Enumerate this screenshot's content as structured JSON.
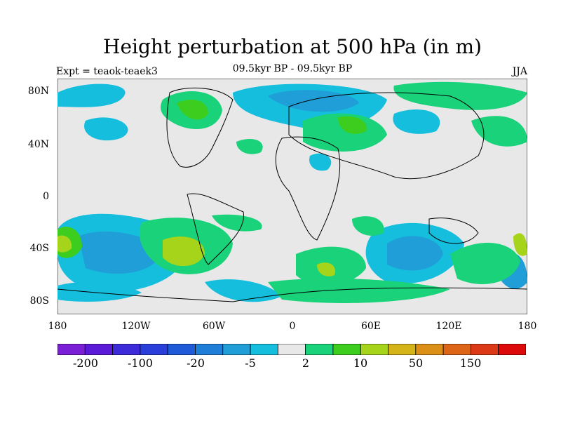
{
  "title": "Height perturbation at 500 hPa (in m)",
  "subtitle": "09.5kyr BP - 09.5kyr BP",
  "left_label": "Expt = teaok-teaek3",
  "right_label": "JJA",
  "lat_ticks": [
    "80N",
    "40N",
    "0",
    "40S",
    "80S"
  ],
  "lon_ticks": [
    "180",
    "120W",
    "60W",
    "0",
    "60E",
    "120E",
    "180"
  ],
  "colorbar": {
    "colors": [
      "#7b1fd6",
      "#5a1ad8",
      "#3d2ad8",
      "#2a3fd9",
      "#1f5ad8",
      "#1f7fd8",
      "#1f9ed8",
      "#14bedc",
      "#e8e8e8",
      "#19d27a",
      "#3ccd1f",
      "#a5d41a",
      "#d4b419",
      "#dc8f17",
      "#dc6517",
      "#dc3a17",
      "#dc0a0a"
    ],
    "labels": [
      "-200",
      "-100",
      "-20",
      "-5",
      "2",
      "10",
      "50",
      "150"
    ]
  }
}
